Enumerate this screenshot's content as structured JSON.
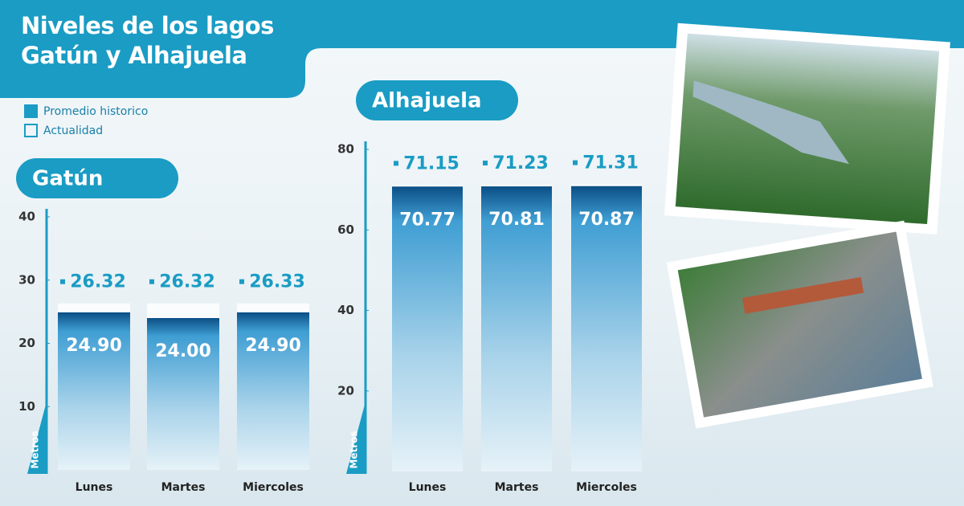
{
  "title": "Niveles de los lagos Gatún y Alhajuela",
  "chart_data": [
    {
      "type": "bar",
      "title": "Gatún",
      "ylabel": "Metros",
      "categories": [
        "Lunes",
        "Martes",
        "Miercoles"
      ],
      "series": [
        {
          "name": "Promedio historico",
          "color": "#1a9cc4",
          "values": [
            26.32,
            26.32,
            26.33
          ]
        },
        {
          "name": "Actualidad",
          "color": "#2a8cc2",
          "values": [
            24.9,
            24.0,
            24.9
          ],
          "value_labels": [
            "24.90",
            "24.00",
            "24.90"
          ]
        }
      ],
      "ylim": [
        0,
        40
      ],
      "yticks": [
        10,
        20,
        30,
        40
      ]
    },
    {
      "type": "bar",
      "title": "Alhajuela",
      "ylabel": "Metros",
      "categories": [
        "Lunes",
        "Martes",
        "Miercoles"
      ],
      "series": [
        {
          "color": "#1a9cc4",
          "values": [
            71.15,
            71.23,
            71.31
          ]
        },
        {
          "color": "#2a8cc2",
          "values": [
            70.77,
            70.81,
            70.87
          ]
        }
      ],
      "ylim": [
        0,
        80
      ],
      "yticks": [
        20,
        40,
        60,
        80
      ]
    }
  ]
}
